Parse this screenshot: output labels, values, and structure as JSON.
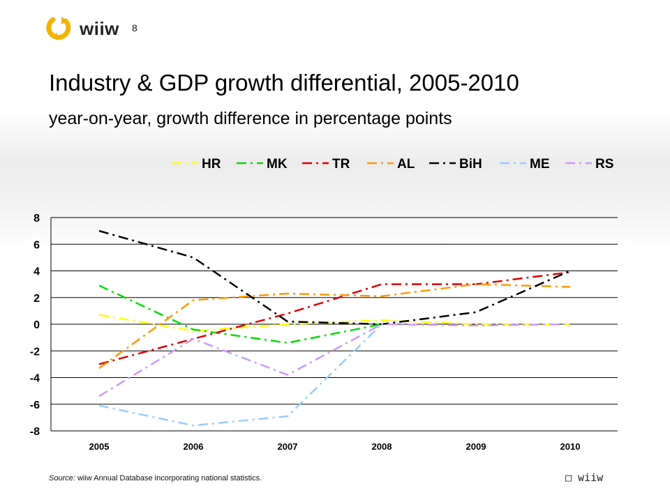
{
  "header": {
    "logo_text": "wiiw",
    "page_number": "8"
  },
  "title": "Industry & GDP growth differential, 2005-2010",
  "subtitle": "year-on-year, growth difference in percentage points",
  "source": {
    "prefix": "Source:",
    "text": " wiiw Annual Database incorporating national statistics."
  },
  "footer_logo_text": " wiiw",
  "chart_data": {
    "type": "line",
    "categories": [
      "2005",
      "2006",
      "2007",
      "2008",
      "2009",
      "2010"
    ],
    "ylim": [
      -8,
      8
    ],
    "yticks": [
      8,
      6,
      4,
      2,
      0,
      -2,
      -4,
      -6,
      -8
    ],
    "ytick_labels": [
      "8",
      "6",
      "4",
      "2",
      "0",
      "-2",
      "-4",
      "-6",
      "-8"
    ],
    "grid": true,
    "legend_placement": "top",
    "series": [
      {
        "name": "HR",
        "color": "#ffff00",
        "values": [
          0.7,
          -0.5,
          0.0,
          0.3,
          0.0,
          0.0
        ]
      },
      {
        "name": "MK",
        "color": "#00dd00",
        "values": [
          2.9,
          -0.4,
          -1.4,
          0.0,
          null,
          null
        ]
      },
      {
        "name": "TR",
        "color": "#dd0000",
        "values": [
          -3.0,
          -1.1,
          0.8,
          3.0,
          3.0,
          3.9
        ]
      },
      {
        "name": "AL",
        "color": "#ff9900",
        "values": [
          -3.3,
          1.8,
          2.3,
          2.1,
          3.0,
          2.8
        ]
      },
      {
        "name": "BiH",
        "color": "#000000",
        "values": [
          7.0,
          5.0,
          0.2,
          0.0,
          0.9,
          4.0
        ]
      },
      {
        "name": "ME",
        "color": "#99ccff",
        "values": [
          -6.1,
          -7.6,
          -6.9,
          0.0,
          null,
          null
        ]
      },
      {
        "name": "RS",
        "color": "#cc99ff",
        "values": [
          -5.4,
          -1.1,
          -3.8,
          0.0,
          -0.1,
          0.0
        ]
      }
    ]
  }
}
